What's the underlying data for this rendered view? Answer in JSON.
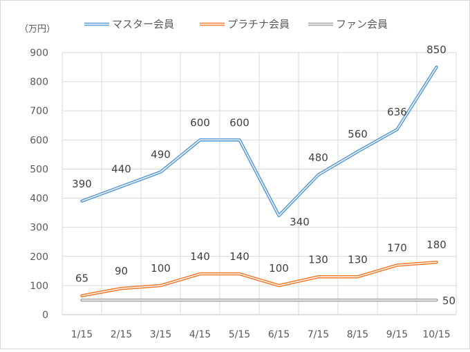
{
  "chart_data": {
    "type": "line",
    "unit_label": "（万円）",
    "categories": [
      "1/15",
      "2/15",
      "3/15",
      "4/15",
      "5/15",
      "6/15",
      "7/15",
      "8/15",
      "9/15",
      "10/15"
    ],
    "ylim": [
      0,
      900
    ],
    "yticks": [
      0,
      100,
      200,
      300,
      400,
      500,
      600,
      700,
      800,
      900
    ],
    "grid": true,
    "legend_position": "top",
    "series": [
      {
        "name": "マスター会員",
        "color": "#5b9bd5",
        "values": [
          390,
          440,
          490,
          600,
          600,
          340,
          480,
          560,
          636,
          850
        ],
        "data_labels": [
          "390",
          "440",
          "490",
          "600",
          "600",
          "340",
          "480",
          "560",
          "636",
          "850"
        ]
      },
      {
        "name": "プラチナ会員",
        "color": "#ed7d31",
        "values": [
          65,
          90,
          100,
          140,
          140,
          100,
          130,
          130,
          170,
          180
        ],
        "data_labels": [
          "65",
          "90",
          "100",
          "140",
          "140",
          "100",
          "130",
          "130",
          "170",
          "180"
        ]
      },
      {
        "name": "ファン会員",
        "color": "#a5a5a5",
        "values": [
          50,
          50,
          50,
          50,
          50,
          50,
          50,
          50,
          50,
          50
        ],
        "data_labels": [
          "",
          "",
          "",
          "",
          "",
          "",
          "",
          "",
          "",
          "50"
        ]
      }
    ]
  }
}
